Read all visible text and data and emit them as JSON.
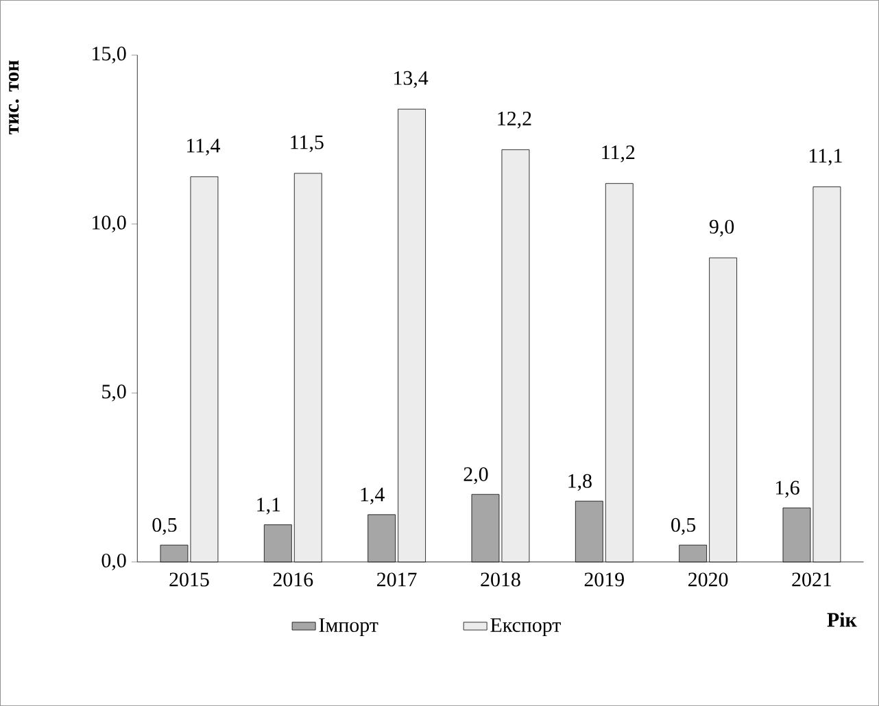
{
  "chart_data": {
    "type": "bar",
    "categories": [
      "2015",
      "2016",
      "2017",
      "2018",
      "2019",
      "2020",
      "2021"
    ],
    "series": [
      {
        "name": "Імпорт",
        "color": "#a6a6a6",
        "values": [
          0.5,
          1.1,
          1.4,
          2.0,
          1.8,
          0.5,
          1.6
        ],
        "value_labels": [
          "0,5",
          "1,1",
          "1,4",
          "2,0",
          "1,8",
          "0,5",
          "1,6"
        ]
      },
      {
        "name": "Експорт",
        "color": "#ececec",
        "values": [
          11.4,
          11.5,
          13.4,
          12.2,
          11.2,
          9.0,
          11.1
        ],
        "value_labels": [
          "11,4",
          "11,5",
          "13,4",
          "12,2",
          "11,2",
          "9,0",
          "11,1"
        ]
      }
    ],
    "ylabel": "тис. тон",
    "xlabel": "Рік",
    "ylim": [
      0,
      15
    ],
    "yticks": [
      {
        "value": 0,
        "label": "0,0"
      },
      {
        "value": 5,
        "label": "5,0"
      },
      {
        "value": 10,
        "label": "10,0"
      },
      {
        "value": 15,
        "label": "15,0"
      }
    ],
    "grid": false,
    "legend": "bottom"
  }
}
